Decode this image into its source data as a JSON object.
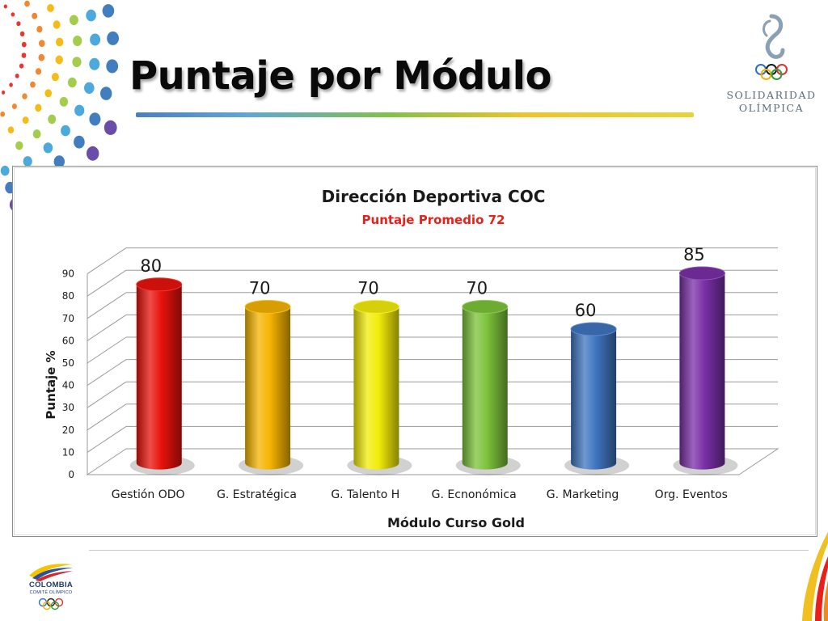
{
  "slide": {
    "title": "Puntaje por Módulo"
  },
  "logos": {
    "solidaridad": {
      "line1": "SOLIDARIDAD",
      "line2": "OLÍMPICA"
    },
    "colombia": {
      "name": "COLOMBIA",
      "sub": "COMITÉ OLÍMPICO"
    }
  },
  "colors": {
    "title_rule": [
      "#4a7fc1",
      "#7ec24a",
      "#f2c22a"
    ],
    "subtitle": "#e8201a"
  },
  "chart_data": {
    "type": "bar",
    "style": "3d-cylinder",
    "title": "Dirección Deportiva COC",
    "subtitle": "Puntaje Promedio 72",
    "xlabel": "Módulo Curso Gold",
    "ylabel": "Puntaje %",
    "ylim": [
      0,
      90
    ],
    "yticks": [
      0,
      10,
      20,
      30,
      40,
      50,
      60,
      70,
      80,
      90
    ],
    "grid": true,
    "legend": "none",
    "categories": [
      "Gestión ODO",
      "G. Estratégica",
      "G. Talento H",
      "G. Ecnonómica",
      "G. Marketing",
      "Org. Eventos"
    ],
    "values": [
      80,
      70,
      70,
      70,
      60,
      85
    ],
    "bar_colors": [
      "#e8120c",
      "#f5b400",
      "#f2ec0a",
      "#7cc23a",
      "#3f75bf",
      "#7a2fa6"
    ]
  }
}
